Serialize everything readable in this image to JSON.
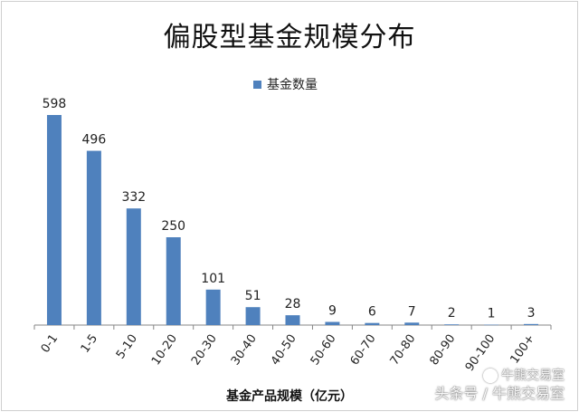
{
  "chart_data": {
    "type": "bar",
    "title": "偏股型基金规模分布",
    "xlabel": "基金产品规模（亿元）",
    "ylabel": "",
    "categories": [
      "0-1",
      "1-5",
      "5-10",
      "10-20",
      "20-30",
      "30-40",
      "40-50",
      "50-60",
      "60-70",
      "70-80",
      "80-90",
      "90-100",
      "100+"
    ],
    "series": [
      {
        "name": "基金数量",
        "values": [
          598,
          496,
          332,
          250,
          101,
          51,
          28,
          9,
          6,
          7,
          2,
          1,
          3
        ],
        "color": "#4f81bd"
      }
    ],
    "ylim": [
      0,
      598
    ],
    "grid": false,
    "legend_position": "top-center",
    "data_labels": true
  },
  "watermark": {
    "line1": "牛熊交易室",
    "line2": "头条号 / 牛熊交易室"
  }
}
